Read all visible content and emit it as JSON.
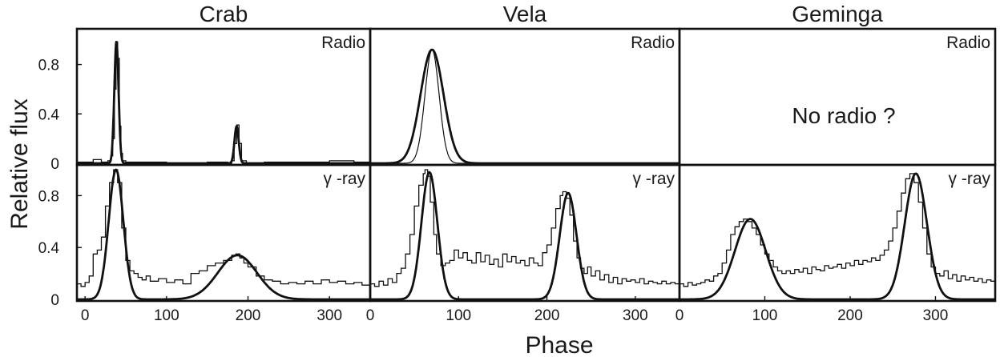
{
  "figure": {
    "ylabel": "Relative flux",
    "xlabel": "Phase"
  },
  "chart_data": [
    {
      "type": "line",
      "title": "Crab",
      "row_label": "Radio",
      "xlim": [
        -10,
        350
      ],
      "ylim": [
        0,
        1.05
      ],
      "yticks": [
        "0",
        "0.4",
        "0.8"
      ],
      "xticks": [],
      "annotation": "",
      "series": [
        {
          "style": "histogram",
          "x": [
            -10,
            10,
            20,
            28,
            32,
            34,
            36,
            38,
            40,
            42,
            44,
            46,
            50,
            60,
            100,
            150,
            175,
            180,
            183,
            186,
            189,
            192,
            198,
            220,
            280,
            300,
            330,
            350
          ],
          "y": [
            0.01,
            0.03,
            0.01,
            0.02,
            0.06,
            0.2,
            0.6,
            0.98,
            0.85,
            0.3,
            0.08,
            0.02,
            0.01,
            0.01,
            0.0,
            0.01,
            0.0,
            0.02,
            0.16,
            0.31,
            0.16,
            0.02,
            0.0,
            0.01,
            0.01,
            0.02,
            0.01,
            0.01
          ]
        },
        {
          "style": "fit",
          "peaks": [
            {
              "x": 38.5,
              "amp": 0.99,
              "sigma": 2.6
            },
            {
              "x": 186,
              "amp": 0.3,
              "sigma": 2.6
            }
          ]
        }
      ]
    },
    {
      "type": "line",
      "title": "Crab",
      "row_label": "γ -ray",
      "xlim": [
        -10,
        350
      ],
      "ylim": [
        0,
        1.0
      ],
      "yticks": [
        "0",
        "0.4",
        "0.8"
      ],
      "xticks": [
        "0",
        "100",
        "200",
        "300"
      ],
      "annotation": "",
      "series": [
        {
          "style": "histogram",
          "x": [
            -10,
            -5,
            0,
            5,
            10,
            15,
            20,
            25,
            30,
            35,
            40,
            45,
            50,
            55,
            60,
            65,
            70,
            75,
            80,
            90,
            100,
            110,
            120,
            130,
            140,
            150,
            160,
            170,
            180,
            185,
            190,
            195,
            200,
            210,
            220,
            230,
            240,
            250,
            260,
            270,
            280,
            290,
            300,
            310,
            320,
            330,
            340,
            350
          ],
          "y": [
            0.12,
            0.1,
            0.13,
            0.18,
            0.35,
            0.38,
            0.48,
            0.72,
            0.9,
            1.0,
            0.9,
            0.55,
            0.3,
            0.22,
            0.2,
            0.17,
            0.15,
            0.18,
            0.14,
            0.16,
            0.13,
            0.15,
            0.12,
            0.2,
            0.22,
            0.26,
            0.28,
            0.3,
            0.34,
            0.35,
            0.32,
            0.28,
            0.25,
            0.18,
            0.15,
            0.14,
            0.12,
            0.13,
            0.12,
            0.14,
            0.12,
            0.15,
            0.13,
            0.14,
            0.12,
            0.13,
            0.11,
            0.12
          ]
        },
        {
          "style": "fit",
          "peaks": [
            {
              "x": 38,
              "amp": 1.0,
              "sigma": 9
            },
            {
              "x": 187,
              "amp": 0.34,
              "sigma": 24
            }
          ]
        }
      ]
    },
    {
      "type": "line",
      "title": "Vela",
      "row_label": "Radio",
      "xlim": [
        0,
        350
      ],
      "ylim": [
        0,
        1.05
      ],
      "yticks": [],
      "xticks": [],
      "annotation": "",
      "series": [
        {
          "style": "fit",
          "peaks": [
            {
              "x": 70,
              "amp": 0.92,
              "sigma": 13
            }
          ]
        },
        {
          "style": "fit-thin",
          "peaks": [
            {
              "x": 70,
              "amp": 0.92,
              "sigma": 8
            }
          ]
        }
      ]
    },
    {
      "type": "line",
      "title": "Vela",
      "row_label": "γ -ray",
      "xlim": [
        0,
        350
      ],
      "ylim": [
        0,
        1.0
      ],
      "yticks": [],
      "xticks": [
        "0",
        "100",
        "200",
        "300"
      ],
      "annotation": "",
      "series": [
        {
          "style": "histogram",
          "x": [
            0,
            5,
            10,
            15,
            20,
            25,
            30,
            35,
            40,
            45,
            50,
            55,
            60,
            62,
            65,
            68,
            72,
            75,
            80,
            85,
            90,
            95,
            100,
            105,
            110,
            115,
            120,
            125,
            130,
            135,
            140,
            145,
            150,
            155,
            160,
            165,
            170,
            175,
            180,
            185,
            190,
            195,
            200,
            205,
            210,
            215,
            218,
            222,
            226,
            230,
            234,
            238,
            242,
            246,
            250,
            255,
            260,
            265,
            270,
            275,
            280,
            285,
            290,
            295,
            300,
            305,
            310,
            315,
            320,
            325,
            330,
            335,
            340,
            345,
            350
          ],
          "y": [
            0.12,
            0.1,
            0.14,
            0.11,
            0.16,
            0.13,
            0.2,
            0.24,
            0.35,
            0.5,
            0.72,
            0.88,
            0.97,
            1.0,
            0.95,
            0.75,
            0.5,
            0.35,
            0.26,
            0.28,
            0.3,
            0.38,
            0.32,
            0.36,
            0.3,
            0.28,
            0.36,
            0.29,
            0.34,
            0.27,
            0.31,
            0.25,
            0.35,
            0.29,
            0.33,
            0.28,
            0.3,
            0.26,
            0.32,
            0.28,
            0.26,
            0.36,
            0.42,
            0.55,
            0.7,
            0.8,
            0.83,
            0.78,
            0.65,
            0.45,
            0.32,
            0.24,
            0.2,
            0.25,
            0.18,
            0.22,
            0.15,
            0.19,
            0.13,
            0.17,
            0.12,
            0.16,
            0.14,
            0.15,
            0.13,
            0.16,
            0.12,
            0.14,
            0.13,
            0.12,
            0.14,
            0.12,
            0.13,
            0.12,
            0.13
          ]
        },
        {
          "style": "fit",
          "peaks": [
            {
              "x": 67,
              "amp": 0.98,
              "sigma": 9
            },
            {
              "x": 224,
              "amp": 0.82,
              "sigma": 9.5
            }
          ]
        }
      ]
    },
    {
      "type": "line",
      "title": "Geminga",
      "row_label": "Radio",
      "xlim": [
        0,
        370
      ],
      "ylim": [
        0,
        1.05
      ],
      "yticks": [],
      "xticks": [],
      "annotation": "No radio ?",
      "series": []
    },
    {
      "type": "line",
      "title": "Geminga",
      "row_label": "γ -ray",
      "xlim": [
        0,
        370
      ],
      "ylim": [
        0,
        1.0
      ],
      "yticks": [],
      "xticks": [
        "0",
        "100",
        "200",
        "300"
      ],
      "annotation": "",
      "series": [
        {
          "style": "histogram",
          "x": [
            0,
            5,
            10,
            15,
            20,
            25,
            30,
            35,
            40,
            45,
            50,
            55,
            60,
            65,
            70,
            75,
            80,
            85,
            90,
            95,
            100,
            105,
            110,
            115,
            120,
            125,
            130,
            135,
            140,
            145,
            150,
            155,
            160,
            165,
            170,
            175,
            180,
            185,
            190,
            195,
            200,
            205,
            210,
            215,
            220,
            225,
            230,
            235,
            240,
            245,
            250,
            255,
            260,
            265,
            270,
            275,
            280,
            285,
            290,
            295,
            300,
            305,
            310,
            315,
            320,
            325,
            330,
            335,
            340,
            345,
            350,
            355,
            360,
            365,
            370
          ],
          "y": [
            0.12,
            0.1,
            0.13,
            0.11,
            0.12,
            0.13,
            0.15,
            0.14,
            0.18,
            0.2,
            0.28,
            0.38,
            0.5,
            0.56,
            0.6,
            0.62,
            0.6,
            0.55,
            0.5,
            0.42,
            0.35,
            0.3,
            0.25,
            0.22,
            0.2,
            0.22,
            0.2,
            0.23,
            0.21,
            0.24,
            0.2,
            0.25,
            0.23,
            0.22,
            0.26,
            0.24,
            0.25,
            0.27,
            0.24,
            0.28,
            0.26,
            0.3,
            0.27,
            0.3,
            0.29,
            0.32,
            0.3,
            0.34,
            0.38,
            0.45,
            0.55,
            0.68,
            0.82,
            0.93,
            0.97,
            0.9,
            0.75,
            0.55,
            0.35,
            0.25,
            0.2,
            0.18,
            0.22,
            0.16,
            0.19,
            0.14,
            0.18,
            0.15,
            0.17,
            0.14,
            0.16,
            0.13,
            0.15,
            0.14,
            0.15
          ]
        },
        {
          "style": "fit",
          "peaks": [
            {
              "x": 83,
              "amp": 0.62,
              "sigma": 18
            },
            {
              "x": 277,
              "amp": 0.97,
              "sigma": 13
            }
          ]
        }
      ]
    }
  ]
}
